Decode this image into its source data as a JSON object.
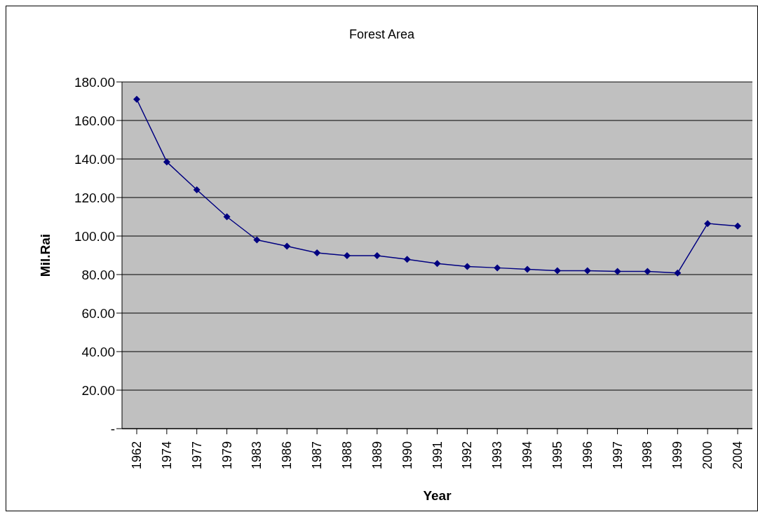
{
  "chart_data": {
    "type": "line",
    "title": "Forest Area",
    "xlabel": "Year",
    "ylabel": "Mil.Rai",
    "categories": [
      "1962",
      "1974",
      "1977",
      "1979",
      "1983",
      "1986",
      "1987",
      "1988",
      "1989",
      "1990",
      "1991",
      "1992",
      "1993",
      "1994",
      "1995",
      "1996",
      "1997",
      "1998",
      "1999",
      "2000",
      "2004"
    ],
    "series": [
      {
        "color": "#000080",
        "values": [
          171,
          138.5,
          124,
          110,
          98,
          94.7,
          91.3,
          89.8,
          89.8,
          87.9,
          85.7,
          84.2,
          83.5,
          82.7,
          82,
          82,
          81.6,
          81.6,
          80.8,
          106.5,
          105.2
        ]
      }
    ],
    "ylim": [
      0,
      180
    ],
    "yticks": [
      {
        "value": 0,
        "label": "-"
      },
      {
        "value": 20,
        "label": "20.00"
      },
      {
        "value": 40,
        "label": "40.00"
      },
      {
        "value": 60,
        "label": "60.00"
      },
      {
        "value": 80,
        "label": "80.00"
      },
      {
        "value": 100,
        "label": "100.00"
      },
      {
        "value": 120,
        "label": "120.00"
      },
      {
        "value": 140,
        "label": "140.00"
      },
      {
        "value": 160,
        "label": "160.00"
      },
      {
        "value": 180,
        "label": "180.00"
      }
    ],
    "grid": "y",
    "marker": "diamond",
    "line_style": "solid",
    "legend": false
  }
}
